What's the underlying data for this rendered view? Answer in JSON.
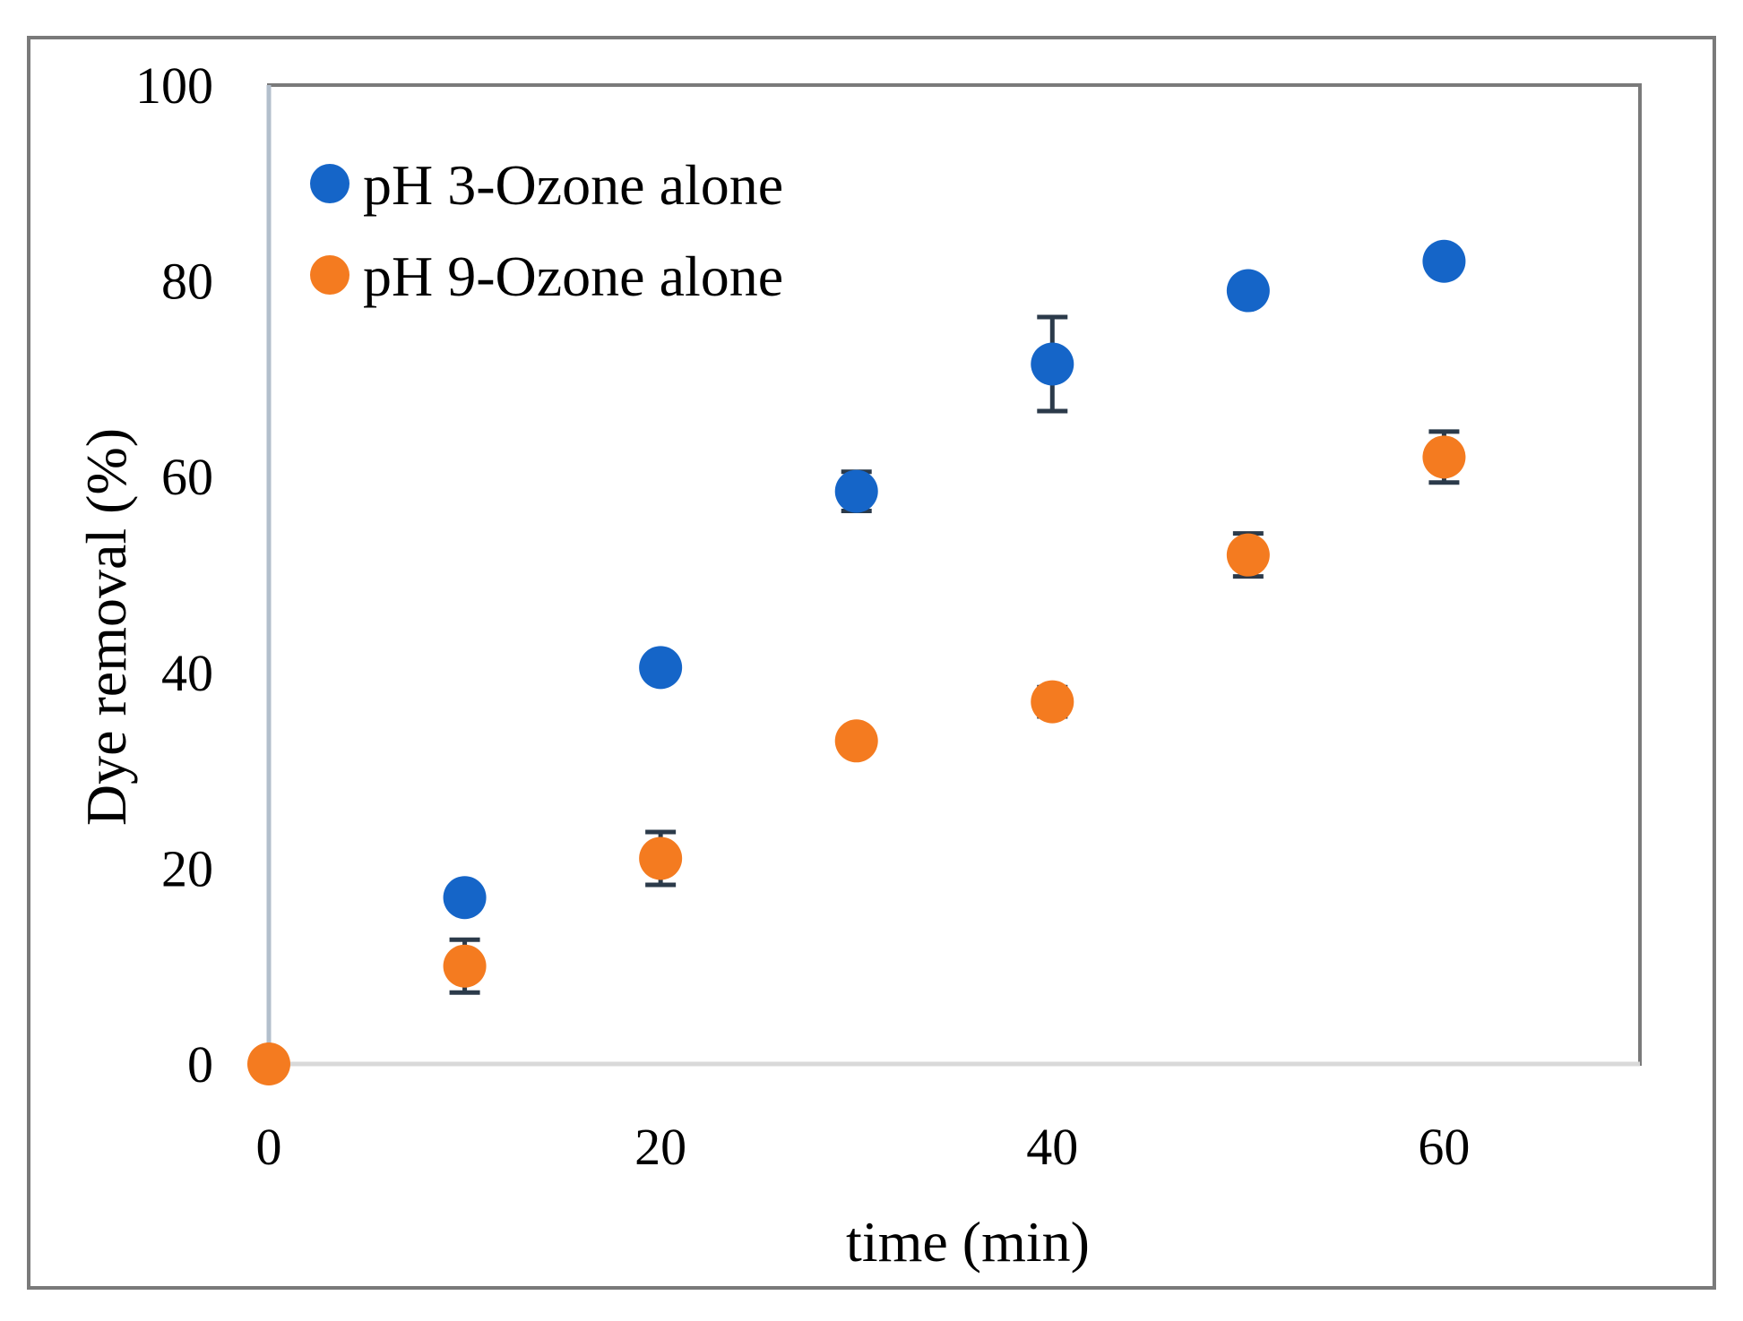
{
  "chart_data": {
    "type": "scatter",
    "title": "",
    "xlabel": "time (min)",
    "ylabel": "Dye removal (%)",
    "xlim": [
      0,
      70
    ],
    "ylim": [
      0,
      100
    ],
    "x_ticks": [
      0,
      20,
      40,
      60
    ],
    "y_ticks": [
      0,
      20,
      40,
      60,
      80,
      100
    ],
    "x_tick_labels": [
      "0",
      "20",
      "40",
      "60"
    ],
    "y_tick_labels": [
      "0",
      "20",
      "40",
      "60",
      "80",
      "100"
    ],
    "legend_position": "top-left",
    "series": [
      {
        "name": "pH 3-Ozone alone",
        "color": "#1565c8",
        "x": [
          10,
          20,
          30,
          40,
          50,
          60
        ],
        "y": [
          17,
          40.5,
          58.5,
          71.5,
          79,
          82
        ],
        "error": [
          0,
          0,
          2,
          4.8,
          0.5,
          0
        ]
      },
      {
        "name": "pH 9-Ozone alone",
        "color": "#f47b20",
        "x": [
          0,
          10,
          20,
          30,
          40,
          50,
          60
        ],
        "y": [
          0,
          10,
          21,
          33,
          37,
          52,
          62
        ],
        "error": [
          0,
          2.7,
          2.7,
          0,
          1.5,
          2.2,
          2.6
        ]
      }
    ]
  }
}
